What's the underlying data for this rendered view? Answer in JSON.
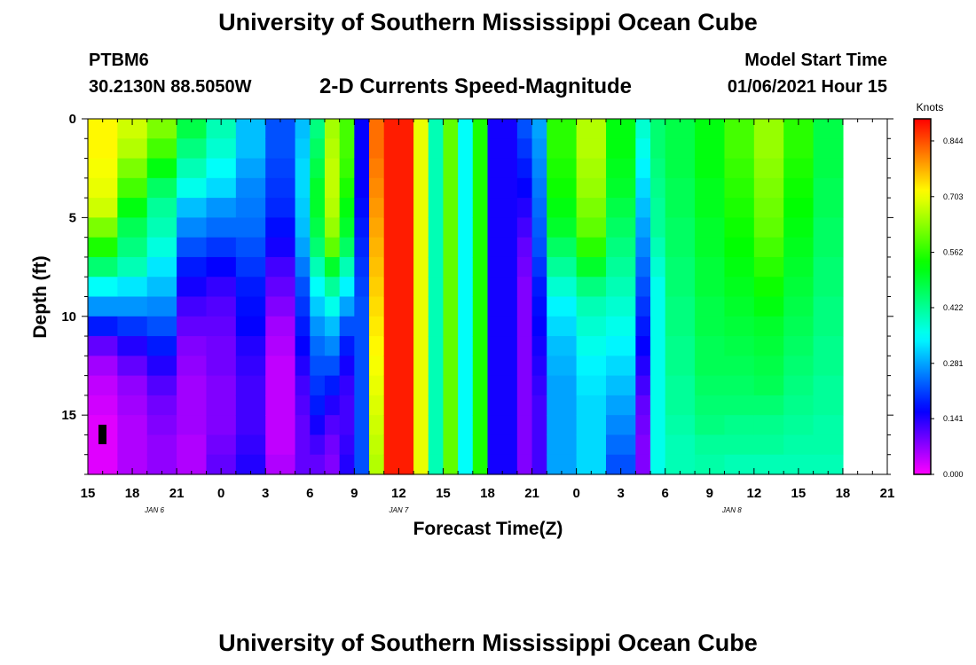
{
  "header": {
    "title": "University of Southern Mississippi Ocean Cube",
    "station": "PTBM6",
    "coordinates": "30.2130N 88.5050W",
    "subtitle": "2-D Currents Speed-Magnitude",
    "model_start_label": "Model Start Time",
    "model_start_value": "01/06/2021 Hour 15"
  },
  "footer": {
    "title": "University of Southern Mississippi Ocean Cube"
  },
  "chart_data": {
    "type": "heatmap",
    "title": "2-D Currents Speed-Magnitude",
    "xlabel": "Forecast Time(Z)",
    "ylabel": "Depth (ft)",
    "x_ticks": [
      "15",
      "18",
      "21",
      "0",
      "3",
      "6",
      "9",
      "12",
      "15",
      "18",
      "21",
      "0",
      "3",
      "6",
      "9",
      "12",
      "15",
      "18",
      "21"
    ],
    "x_start_hour": 15,
    "x_hours_total": 54,
    "date_labels": [
      {
        "text": "JAN 6",
        "hour": 4.5
      },
      {
        "text": "JAN 7",
        "hour": 21
      },
      {
        "text": "JAN 8",
        "hour": 43.5
      }
    ],
    "y_ticks": [
      0,
      5,
      10,
      15
    ],
    "ylim": [
      0,
      18
    ],
    "colorbar": {
      "unit": "Knots",
      "min": 0,
      "max": 0.9,
      "ticks": [
        "0.000",
        "0.141",
        "0.281",
        "0.422",
        "0.562",
        "0.703",
        "0.844"
      ],
      "tick_values": [
        0,
        0.141,
        0.281,
        0.422,
        0.562,
        0.703,
        0.844
      ]
    },
    "depth_levels": [
      0.5,
      1.5,
      2.5,
      3.5,
      4.5,
      5.5,
      6.5,
      7.5,
      8.5,
      9.5,
      10.5,
      11.5,
      12.5,
      13.5,
      14.5,
      15.5,
      16.5,
      17.5
    ],
    "columns": [
      {
        "hours": 2,
        "values": [
          0.72,
          0.72,
          0.71,
          0.7,
          0.68,
          0.62,
          0.55,
          0.45,
          0.35,
          0.27,
          0.18,
          0.1,
          0.06,
          0.04,
          0.03,
          0.02,
          0.02,
          0.02
        ]
      },
      {
        "hours": 2,
        "values": [
          0.68,
          0.66,
          0.62,
          0.58,
          0.52,
          0.47,
          0.44,
          0.4,
          0.33,
          0.27,
          0.2,
          0.14,
          0.1,
          0.07,
          0.06,
          0.05,
          0.05,
          0.05
        ]
      },
      {
        "hours": 2,
        "values": [
          0.62,
          0.58,
          0.52,
          0.46,
          0.42,
          0.4,
          0.37,
          0.33,
          0.3,
          0.26,
          0.22,
          0.18,
          0.14,
          0.11,
          0.09,
          0.08,
          0.07,
          0.07
        ]
      },
      {
        "hours": 2,
        "values": [
          0.48,
          0.44,
          0.4,
          0.36,
          0.3,
          0.26,
          0.22,
          0.18,
          0.15,
          0.12,
          0.1,
          0.08,
          0.07,
          0.06,
          0.06,
          0.06,
          0.05,
          0.05
        ]
      },
      {
        "hours": 2,
        "values": [
          0.4,
          0.38,
          0.35,
          0.32,
          0.27,
          0.24,
          0.2,
          0.16,
          0.13,
          0.11,
          0.1,
          0.09,
          0.09,
          0.08,
          0.08,
          0.08,
          0.09,
          0.1
        ]
      },
      {
        "hours": 2,
        "values": [
          0.3,
          0.3,
          0.28,
          0.26,
          0.25,
          0.24,
          0.22,
          0.2,
          0.18,
          0.17,
          0.16,
          0.14,
          0.13,
          0.12,
          0.12,
          0.12,
          0.13,
          0.14
        ]
      },
      {
        "hours": 2,
        "values": [
          0.22,
          0.22,
          0.21,
          0.2,
          0.19,
          0.17,
          0.15,
          0.12,
          0.1,
          0.08,
          0.06,
          0.05,
          0.04,
          0.04,
          0.04,
          0.04,
          0.04,
          0.05
        ]
      },
      {
        "hours": 1,
        "values": [
          0.3,
          0.31,
          0.32,
          0.32,
          0.31,
          0.3,
          0.28,
          0.25,
          0.22,
          0.2,
          0.18,
          0.16,
          0.14,
          0.12,
          0.11,
          0.1,
          0.1,
          0.1
        ]
      },
      {
        "hours": 1,
        "values": [
          0.44,
          0.46,
          0.48,
          0.5,
          0.5,
          0.48,
          0.45,
          0.4,
          0.35,
          0.31,
          0.27,
          0.24,
          0.22,
          0.2,
          0.18,
          0.15,
          0.12,
          0.1
        ]
      },
      {
        "hours": 1,
        "values": [
          0.65,
          0.66,
          0.67,
          0.67,
          0.66,
          0.64,
          0.6,
          0.5,
          0.42,
          0.36,
          0.3,
          0.26,
          0.22,
          0.18,
          0.14,
          0.11,
          0.09,
          0.08
        ]
      },
      {
        "hours": 1,
        "values": [
          0.58,
          0.58,
          0.57,
          0.55,
          0.52,
          0.5,
          0.46,
          0.4,
          0.34,
          0.28,
          0.22,
          0.18,
          0.15,
          0.13,
          0.12,
          0.12,
          0.13,
          0.14
        ]
      },
      {
        "hours": 1,
        "values": [
          0.16,
          0.16,
          0.16,
          0.16,
          0.17,
          0.18,
          0.19,
          0.2,
          0.21,
          0.22,
          0.22,
          0.22,
          0.22,
          0.22,
          0.22,
          0.22,
          0.22,
          0.22
        ]
      },
      {
        "hours": 1,
        "values": [
          0.82,
          0.82,
          0.81,
          0.8,
          0.79,
          0.78,
          0.77,
          0.76,
          0.75,
          0.74,
          0.73,
          0.72,
          0.71,
          0.7,
          0.69,
          0.68,
          0.67,
          0.66
        ]
      },
      {
        "hours": 2,
        "values": [
          0.88,
          0.88,
          0.88,
          0.88,
          0.88,
          0.88,
          0.88,
          0.88,
          0.88,
          0.88,
          0.88,
          0.88,
          0.88,
          0.88,
          0.88,
          0.88,
          0.88,
          0.88
        ]
      },
      {
        "hours": 1,
        "values": [
          0.7,
          0.7,
          0.7,
          0.7,
          0.7,
          0.7,
          0.7,
          0.7,
          0.7,
          0.7,
          0.7,
          0.7,
          0.7,
          0.7,
          0.7,
          0.7,
          0.7,
          0.7
        ]
      },
      {
        "hours": 1,
        "values": [
          0.4,
          0.4,
          0.4,
          0.4,
          0.4,
          0.4,
          0.4,
          0.4,
          0.4,
          0.4,
          0.4,
          0.4,
          0.4,
          0.4,
          0.4,
          0.4,
          0.4,
          0.4
        ]
      },
      {
        "hours": 1,
        "values": [
          0.6,
          0.6,
          0.6,
          0.6,
          0.6,
          0.6,
          0.6,
          0.6,
          0.6,
          0.6,
          0.6,
          0.6,
          0.6,
          0.6,
          0.6,
          0.6,
          0.6,
          0.6
        ]
      },
      {
        "hours": 1,
        "values": [
          0.35,
          0.35,
          0.35,
          0.35,
          0.35,
          0.35,
          0.35,
          0.35,
          0.35,
          0.35,
          0.35,
          0.35,
          0.35,
          0.35,
          0.35,
          0.35,
          0.35,
          0.35
        ]
      },
      {
        "hours": 1,
        "values": [
          0.55,
          0.55,
          0.55,
          0.55,
          0.55,
          0.55,
          0.55,
          0.55,
          0.55,
          0.55,
          0.55,
          0.55,
          0.55,
          0.55,
          0.55,
          0.55,
          0.55,
          0.55
        ]
      },
      {
        "hours": 2,
        "values": [
          0.15,
          0.15,
          0.15,
          0.15,
          0.15,
          0.15,
          0.15,
          0.15,
          0.15,
          0.15,
          0.15,
          0.15,
          0.15,
          0.15,
          0.15,
          0.15,
          0.15,
          0.15
        ]
      },
      {
        "hours": 1,
        "values": [
          0.22,
          0.2,
          0.18,
          0.16,
          0.14,
          0.12,
          0.1,
          0.09,
          0.08,
          0.08,
          0.08,
          0.08,
          0.08,
          0.08,
          0.08,
          0.08,
          0.08,
          0.08
        ]
      },
      {
        "hours": 1,
        "values": [
          0.28,
          0.27,
          0.26,
          0.25,
          0.24,
          0.23,
          0.22,
          0.2,
          0.18,
          0.17,
          0.16,
          0.15,
          0.14,
          0.13,
          0.12,
          0.12,
          0.12,
          0.12
        ]
      },
      {
        "hours": 2,
        "values": [
          0.56,
          0.56,
          0.55,
          0.54,
          0.52,
          0.5,
          0.46,
          0.42,
          0.38,
          0.34,
          0.32,
          0.3,
          0.29,
          0.28,
          0.28,
          0.28,
          0.28,
          0.28
        ]
      },
      {
        "hours": 2,
        "values": [
          0.66,
          0.66,
          0.65,
          0.64,
          0.62,
          0.6,
          0.56,
          0.5,
          0.44,
          0.4,
          0.38,
          0.36,
          0.34,
          0.33,
          0.32,
          0.32,
          0.32,
          0.32
        ]
      },
      {
        "hours": 2,
        "values": [
          0.52,
          0.52,
          0.51,
          0.5,
          0.48,
          0.46,
          0.44,
          0.42,
          0.4,
          0.38,
          0.36,
          0.34,
          0.32,
          0.3,
          0.28,
          0.26,
          0.24,
          0.22
        ]
      },
      {
        "hours": 1,
        "values": [
          0.38,
          0.36,
          0.34,
          0.32,
          0.3,
          0.28,
          0.26,
          0.24,
          0.22,
          0.2,
          0.18,
          0.16,
          0.14,
          0.12,
          0.1,
          0.09,
          0.08,
          0.08
        ]
      },
      {
        "hours": 1,
        "values": [
          0.45,
          0.45,
          0.44,
          0.43,
          0.42,
          0.42,
          0.4,
          0.38,
          0.36,
          0.36,
          0.36,
          0.36,
          0.36,
          0.36,
          0.36,
          0.36,
          0.36,
          0.36
        ]
      },
      {
        "hours": 2,
        "values": [
          0.48,
          0.48,
          0.48,
          0.47,
          0.47,
          0.46,
          0.46,
          0.45,
          0.45,
          0.44,
          0.44,
          0.43,
          0.43,
          0.42,
          0.42,
          0.41,
          0.4,
          0.4
        ]
      },
      {
        "hours": 2,
        "values": [
          0.52,
          0.52,
          0.52,
          0.51,
          0.51,
          0.5,
          0.5,
          0.49,
          0.49,
          0.48,
          0.48,
          0.47,
          0.47,
          0.46,
          0.45,
          0.44,
          0.42,
          0.41
        ]
      },
      {
        "hours": 2,
        "values": [
          0.58,
          0.58,
          0.57,
          0.56,
          0.55,
          0.54,
          0.53,
          0.52,
          0.51,
          0.5,
          0.49,
          0.48,
          0.47,
          0.46,
          0.45,
          0.43,
          0.42,
          0.4
        ]
      },
      {
        "hours": 2,
        "values": [
          0.64,
          0.64,
          0.63,
          0.62,
          0.61,
          0.6,
          0.58,
          0.56,
          0.54,
          0.52,
          0.5,
          0.49,
          0.48,
          0.47,
          0.45,
          0.43,
          0.42,
          0.4
        ]
      },
      {
        "hours": 2,
        "values": [
          0.56,
          0.56,
          0.55,
          0.54,
          0.53,
          0.52,
          0.51,
          0.5,
          0.49,
          0.48,
          0.47,
          0.46,
          0.45,
          0.44,
          0.43,
          0.42,
          0.41,
          0.4
        ]
      },
      {
        "hours": 2,
        "values": [
          0.48,
          0.48,
          0.48,
          0.47,
          0.47,
          0.46,
          0.46,
          0.45,
          0.45,
          0.44,
          0.44,
          0.43,
          0.43,
          0.42,
          0.42,
          0.41,
          0.41,
          0.4
        ]
      }
    ]
  }
}
